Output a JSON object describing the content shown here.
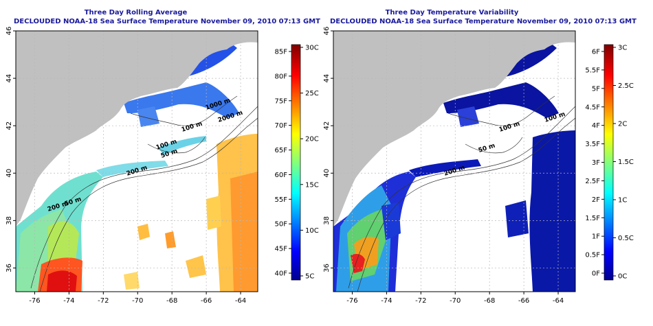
{
  "maps": [
    {
      "title_line1": "Three Day Rolling Average",
      "title_line2": "DECLOUDED NOAA-18 Sea Surface Temperature November 09, 2010 07:13 GMT",
      "x_ticks": [
        "-76",
        "-74",
        "-72",
        "-70",
        "-68",
        "-66",
        "-64"
      ],
      "y_ticks": [
        "36",
        "38",
        "40",
        "42",
        "44",
        "46"
      ],
      "contour_labels": [
        "200 m",
        "100 m",
        "1000 m",
        "2000 m",
        "100 m",
        "50 m",
        "200 m",
        "50 m"
      ],
      "colorbar": {
        "left_labels": [
          "85F",
          "80F",
          "75F",
          "70F",
          "65F",
          "60F",
          "55F",
          "50F",
          "45F",
          "40F"
        ],
        "right_labels": [
          "30C",
          "25C",
          "20C",
          "15C",
          "10C",
          "5C"
        ],
        "min_c": 5,
        "max_c": 30
      }
    },
    {
      "title_line1": "Three Day Temperature Variability",
      "title_line2": "DECLOUDED NOAA-18 Sea Surface Temperature November 09, 2010 07:13 GMT",
      "x_ticks": [
        "-76",
        "-74",
        "-72",
        "-70",
        "-68",
        "-66",
        "-64"
      ],
      "y_ticks": [
        "36",
        "38",
        "40",
        "42",
        "44",
        "46"
      ],
      "contour_labels": [
        "100 m",
        "100 m",
        "50 m",
        "200 m"
      ],
      "colorbar": {
        "left_labels": [
          "6F",
          "5.5F",
          "5F",
          "4.5F",
          "4F",
          "3.5F",
          "3F",
          "2.5F",
          "2F",
          "1.5F",
          "1F",
          "0.5F",
          "0F"
        ],
        "right_labels": [
          "3C",
          "2.5C",
          "2C",
          "1.5C",
          "1C",
          "0.5C",
          "0C"
        ],
        "min_c": 0,
        "max_c": 3.4
      }
    }
  ],
  "colors": {
    "land": "#c0c0c0",
    "grid": "#b8b8b8",
    "title": "#1a1a9c"
  }
}
